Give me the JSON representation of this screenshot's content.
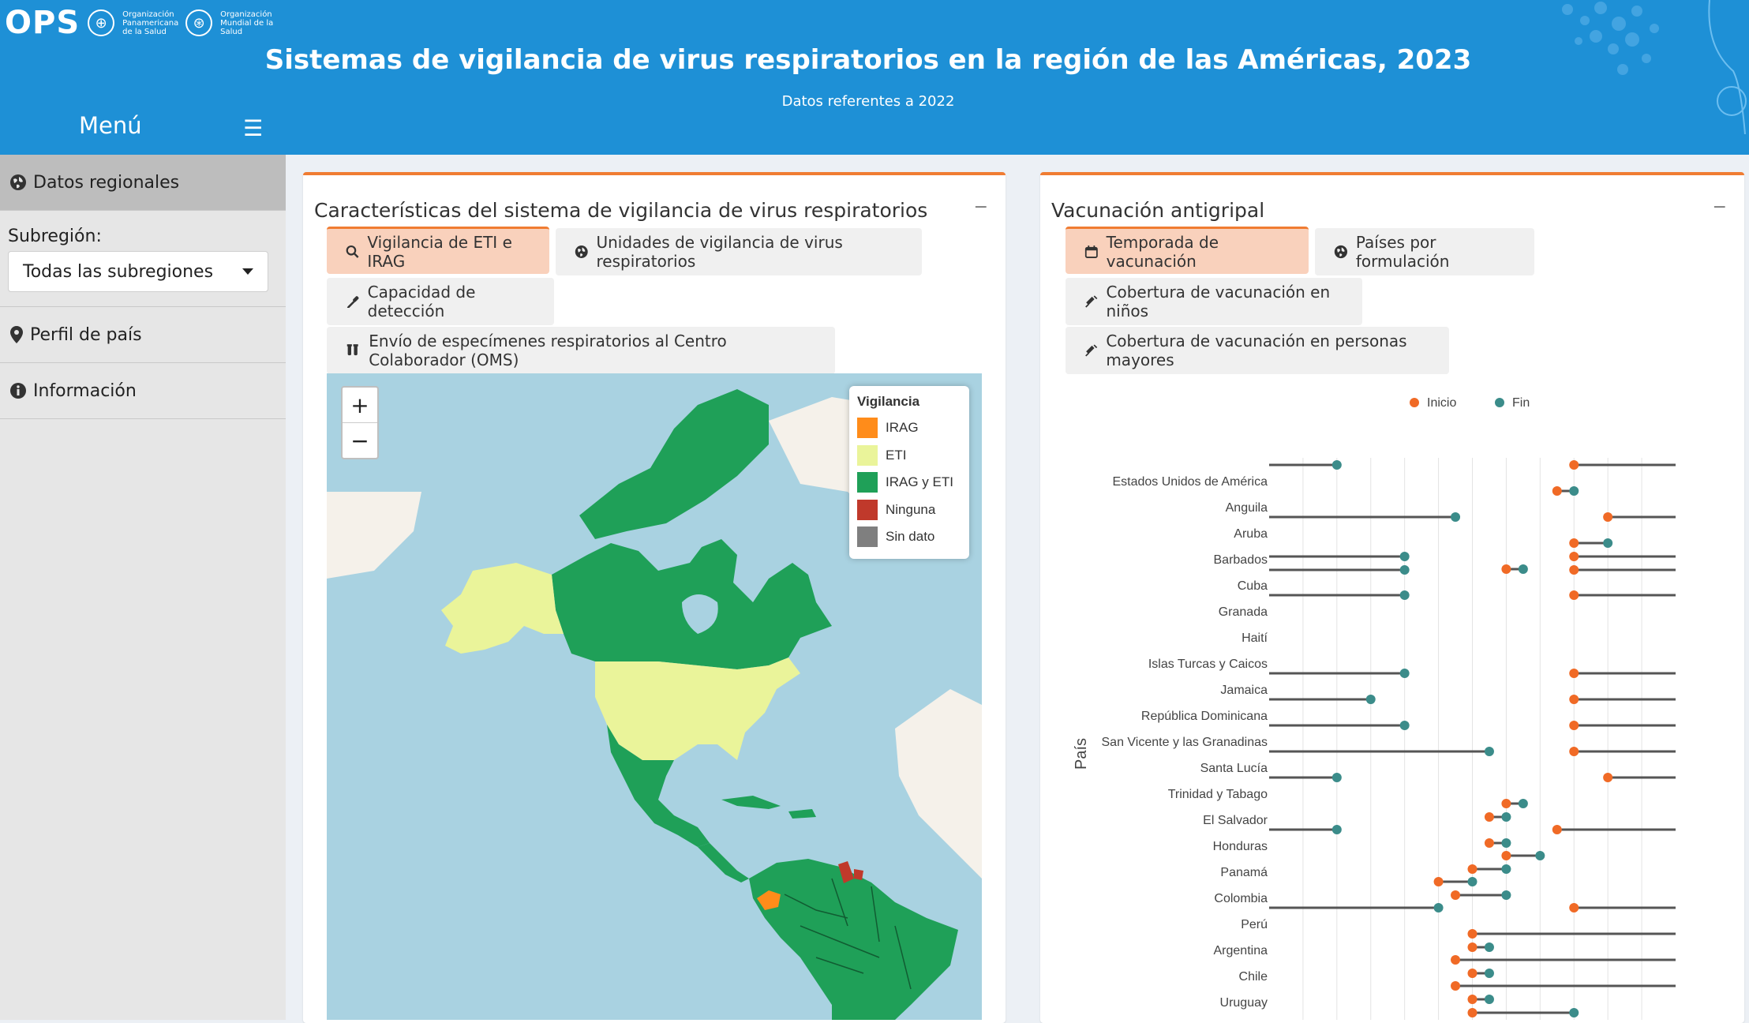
{
  "header": {
    "logo_text": "OPS",
    "org_text_1": "Organización Panamericana de la Salud",
    "org_text_2": "Organización Mundial de la Salud",
    "title": "Sistemas de vigilancia de virus respiratorios en la región de las Américas, 2023",
    "subtitle": "Datos referentes a 2022",
    "menu_label": "Menú"
  },
  "sidebar": {
    "items": [
      {
        "label": "Datos regionales",
        "icon": "globe-icon"
      },
      {
        "label": "Perfil de país",
        "icon": "map-pin-icon"
      },
      {
        "label": "Información",
        "icon": "info-icon"
      }
    ],
    "subregion_label": "Subregión:",
    "subregion_value": "Todas las subregiones"
  },
  "left_box": {
    "title": "Características del sistema de vigilancia de virus respiratorios",
    "tabs": [
      {
        "label": "Vigilancia de ETI e IRAG",
        "icon": "search-icon"
      },
      {
        "label": "Unidades de vigilancia de virus respiratorios",
        "icon": "globe-icon"
      },
      {
        "label": "Capacidad de detección",
        "icon": "eyedropper-icon"
      },
      {
        "label": "Envío de especímenes respiratorios al Centro Colaborador (OMS)",
        "icon": "vials-icon"
      }
    ],
    "map_legend": {
      "title": "Vigilancia",
      "items": [
        {
          "label": "IRAG",
          "color": "#ff8c1a"
        },
        {
          "label": "ETI",
          "color": "#eaf49a"
        },
        {
          "label": "IRAG y ETI",
          "color": "#1fa058"
        },
        {
          "label": "Ninguna",
          "color": "#c0392b"
        },
        {
          "label": "Sin dato",
          "color": "#7f7f7f"
        }
      ]
    },
    "zoom_in": "+",
    "zoom_out": "−"
  },
  "right_box": {
    "title": "Vacunación antigripal",
    "tabs": [
      {
        "label": "Temporada de vacunación",
        "icon": "calendar-icon"
      },
      {
        "label": "Países por formulación",
        "icon": "globe-icon"
      },
      {
        "label": "Cobertura de vacunación en niños",
        "icon": "syringe-icon"
      },
      {
        "label": "Cobertura de vacunación en personas mayores",
        "icon": "syringe-icon"
      }
    ]
  },
  "chart_data": {
    "type": "dumbbell",
    "ylabel": "País",
    "legend": [
      {
        "name": "Inicio",
        "color": "#f06a26"
      },
      {
        "name": "Fin",
        "color": "#3b8c8a"
      }
    ],
    "legend_position": "top",
    "x_grid": true,
    "countries": [
      "Estados Unidos de América",
      "Anguila",
      "Aruba",
      "Barbados",
      "Cuba",
      "Granada",
      "Haití",
      "Islas Turcas y Caicos",
      "Jamaica",
      "República Dominicana",
      "San Vicente y las Granadinas",
      "Santa Lucía",
      "Trinidad y Tabago",
      "El Salvador",
      "Honduras",
      "Panamá",
      "Colombia",
      "Perú",
      "Argentina",
      "Chile",
      "Uruguay"
    ],
    "segments": [
      {
        "country": "Estados Unidos de América",
        "start_month": 10.0,
        "end_month": 3.0
      },
      {
        "country": "Anguila",
        "start_month": 9.5,
        "end_month": 10.0
      },
      {
        "country": "Aruba",
        "start_month": 11.0,
        "end_month": 6.5
      },
      {
        "country": "Barbados",
        "start_month": 10.0,
        "end_month": 11.0
      },
      {
        "country": "Barbados",
        "start_month": 10.0,
        "end_month": 5.0
      },
      {
        "country": "Barbados",
        "start_month": 10.0,
        "end_month": 5.0
      },
      {
        "country": "Cuba",
        "start_month": 8.0,
        "end_month": 8.5
      },
      {
        "country": "Granada",
        "start_month": 10.0,
        "end_month": 5.0
      },
      {
        "country": "Jamaica",
        "start_month": 10.0,
        "end_month": 5.0
      },
      {
        "country": "República Dominicana",
        "start_month": 10.0,
        "end_month": 4.0
      },
      {
        "country": "San Vicente y las Granadinas",
        "start_month": 10.0,
        "end_month": 5.0
      },
      {
        "country": "Santa Lucía",
        "start_month": 10.0,
        "end_month": 7.5
      },
      {
        "country": "Trinidad y Tabago",
        "start_month": 11.0,
        "end_month": 3.0
      },
      {
        "country": "El Salvador",
        "start_month": 8.0,
        "end_month": 8.5
      },
      {
        "country": "El Salvador",
        "start_month": 7.5,
        "end_month": 8.0
      },
      {
        "country": "Honduras",
        "start_month": 9.5,
        "end_month": 3.0
      },
      {
        "country": "Honduras",
        "start_month": 7.5,
        "end_month": 8.0
      },
      {
        "country": "Panamá",
        "start_month": 8.0,
        "end_month": 9.0
      },
      {
        "country": "Panamá",
        "start_month": 7.0,
        "end_month": 8.0
      },
      {
        "country": "Colombia",
        "start_month": 6.0,
        "end_month": 7.0
      },
      {
        "country": "Colombia",
        "start_month": 6.5,
        "end_month": 8.0
      },
      {
        "country": "Perú",
        "start_month": 10.0,
        "end_month": 6.0
      },
      {
        "country": "Argentina",
        "start_month": 7.0,
        "end_month": 13.0
      },
      {
        "country": "Argentina",
        "start_month": 7.0,
        "end_month": 7.5
      },
      {
        "country": "Chile",
        "start_month": 6.5,
        "end_month": 13.0
      },
      {
        "country": "Chile",
        "start_month": 7.0,
        "end_month": 7.5
      },
      {
        "country": "Uruguay",
        "start_month": 6.5,
        "end_month": 13.0
      },
      {
        "country": "Uruguay",
        "start_month": 7.0,
        "end_month": 7.5
      },
      {
        "country": "Uruguay",
        "start_month": 7.0,
        "end_month": 10.0
      }
    ]
  }
}
